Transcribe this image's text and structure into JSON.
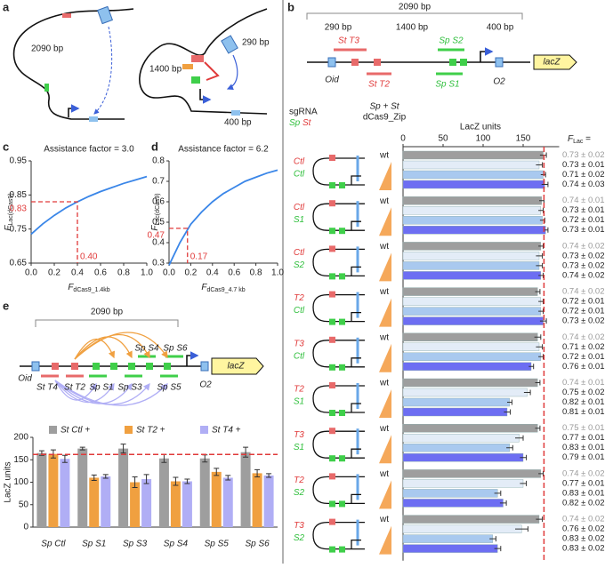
{
  "figure": {
    "panel_labels": {
      "a": "a",
      "b": "b",
      "c": "c",
      "d": "d",
      "e": "e"
    },
    "panel_a": {
      "left_length": "2090 bp",
      "right_long": "1400 bp",
      "right_top": "290 bp",
      "right_bottom": "400 bp"
    },
    "panel_b_map": {
      "span": "2090 bp",
      "seg1": "290 bp",
      "seg2": "1400 bp",
      "seg3": "400 bp",
      "st_t3": "St T3",
      "sp_s2": "Sp S2",
      "st_t2": "St T2",
      "sp_s1": "Sp S1",
      "oid": "Oid",
      "o2": "O2",
      "lacz": "lacZ"
    },
    "panel_b_headers": {
      "sgrna": "sgRNA",
      "sp": "Sp",
      "st": "St",
      "combo": "Sp + St",
      "zip": "dCas9_Zip",
      "flac": "F",
      "flac_sub": "Lac",
      "flac_eq": " ="
    },
    "panel_e_map": {
      "span": "2090 bp",
      "sp_s4": "Sp S4",
      "sp_s6": "Sp S6",
      "oid": "Oid",
      "st_t4": "St T4",
      "st_t2": "St T2",
      "sp_s1": "Sp S1",
      "sp_s3": "Sp S3",
      "sp_s5": "Sp S5",
      "o2": "O2",
      "lacz": "lacZ"
    }
  },
  "chart_data": [
    {
      "type": "line",
      "title": "Assistance factor = 3.0",
      "xlabel": {
        "main": "F",
        "sub": "dCas9_1.4kb"
      },
      "ylabel": {
        "main": "F",
        "sub": "Lac(dCas9)"
      },
      "x": [
        0,
        0.1,
        0.2,
        0.3,
        0.4,
        0.5,
        0.6,
        0.7,
        0.8,
        0.9,
        1
      ],
      "series": [
        {
          "color": "#3a86e8",
          "values": [
            0.735,
            0.765,
            0.79,
            0.812,
            0.83,
            0.846,
            0.86,
            0.872,
            0.884,
            0.894,
            0.904
          ]
        }
      ],
      "xlim": [
        0,
        1
      ],
      "ylim": [
        0.65,
        0.95
      ],
      "xticks": [
        {
          "value": 0,
          "label": "0.0"
        },
        0.2,
        0.4,
        0.6,
        0.8,
        {
          "value": 1,
          "label": "1.0"
        }
      ],
      "yticks": [
        0.65,
        0.75,
        0.85,
        0.95
      ],
      "highlight": {
        "x": {
          "value": 0.4,
          "label": "0.40"
        },
        "y": {
          "value": 0.83,
          "label": "0.83"
        },
        "color": "#e03a3a"
      }
    },
    {
      "type": "line",
      "title": "Assistance factor = 6.2",
      "xlabel": {
        "main": "F",
        "sub": "dCas9_4.7 kb"
      },
      "ylabel": {
        "main": "F",
        "sub": "Lac(dCas9)"
      },
      "x": [
        0,
        0.1,
        0.2,
        0.3,
        0.4,
        0.5,
        0.6,
        0.7,
        0.8,
        0.9,
        1
      ],
      "series": [
        {
          "color": "#3a86e8",
          "values": [
            0.29,
            0.4,
            0.49,
            0.55,
            0.6,
            0.64,
            0.67,
            0.7,
            0.72,
            0.74,
            0.755
          ]
        }
      ],
      "xlim": [
        0,
        1
      ],
      "ylim": [
        0.3,
        0.8
      ],
      "xticks": [
        {
          "value": 0,
          "label": "0.0"
        },
        0.2,
        0.4,
        0.6,
        0.8,
        {
          "value": 1,
          "label": "1.0"
        }
      ],
      "yticks": [
        0.3,
        0.4,
        0.5,
        0.6,
        0.7,
        0.8
      ],
      "highlight": {
        "x": {
          "value": 0.17,
          "label": "0.17"
        },
        "y": {
          "value": 0.47,
          "label": "0.47"
        },
        "color": "#e03a3a"
      }
    },
    {
      "type": "grouped-bar",
      "ylabel": "LacZ units",
      "categories": [
        "Sp Ctl",
        "Sp S1",
        "Sp S3",
        "Sp S4",
        "Sp S5",
        "Sp S6"
      ],
      "series": [
        {
          "name": "St Ctl +",
          "color": "#9e9e9e",
          "values": [
            165,
            175,
            175,
            153,
            153,
            167
          ],
          "errors": [
            5,
            3,
            10,
            9,
            8,
            11
          ]
        },
        {
          "name": "St T2 +",
          "color": "#f0a040",
          "values": [
            163,
            110,
            100,
            102,
            123,
            120
          ],
          "errors": [
            9,
            6,
            12,
            9,
            8,
            8
          ]
        },
        {
          "name": "St T4 +",
          "color": "#b0aef5",
          "values": [
            152,
            113,
            107,
            102,
            110,
            115
          ],
          "errors": [
            8,
            4,
            10,
            5,
            5,
            4
          ]
        }
      ],
      "ylim": [
        0,
        200
      ],
      "yticks": [
        0,
        50,
        100,
        150,
        200
      ],
      "reference_line": 162,
      "reference_color": "#e03a3a"
    },
    {
      "type": "hbar-groups",
      "xlabel": "LacZ units",
      "wt_label": "wt",
      "xlim": [
        0,
        195
      ],
      "xticks": [
        0,
        50,
        100,
        150
      ],
      "reference_line": 176,
      "reference_color": "#e03a3a",
      "groups": [
        {
          "st": "Ctl",
          "sp": "Ctl"
        },
        {
          "st": "Ctl",
          "sp": "S1"
        },
        {
          "st": "Ctl",
          "sp": "S2"
        },
        {
          "st": "T2",
          "sp": "Ctl"
        },
        {
          "st": "T3",
          "sp": "Ctl"
        },
        {
          "st": "T2",
          "sp": "S1"
        },
        {
          "st": "T3",
          "sp": "S1"
        },
        {
          "st": "T2",
          "sp": "S2"
        },
        {
          "st": "T3",
          "sp": "S2"
        }
      ],
      "series": [
        {
          "color": "#9e9e9e",
          "label_color": "#9a9a9a",
          "values": [
            175,
            173,
            172,
            168,
            168,
            168,
            168,
            172,
            170
          ],
          "errors": [
            4,
            3,
            3,
            3,
            4,
            3,
            3,
            3,
            4
          ]
        },
        {
          "color": "#e3ecf7",
          "label_color": "#222222",
          "values": [
            170,
            172,
            170,
            172,
            170,
            155,
            145,
            150,
            148
          ],
          "errors": [
            4,
            3,
            4,
            3,
            4,
            4,
            5,
            4,
            8
          ]
        },
        {
          "color": "#a9c9ef",
          "label_color": "#222222",
          "values": [
            175,
            174,
            170,
            172,
            172,
            133,
            133,
            118,
            112
          ],
          "errors": [
            3,
            3,
            4,
            3,
            3,
            3,
            4,
            4,
            4
          ]
        },
        {
          "color": "#6d6ef2",
          "label_color": "#222222",
          "values": [
            177,
            178,
            172,
            175,
            160,
            130,
            150,
            125,
            118
          ],
          "errors": [
            4,
            3,
            3,
            4,
            3,
            4,
            4,
            4,
            4
          ]
        }
      ],
      "flac_labels": [
        [
          "0.73 ± 0.02",
          "0.73 ± 0.01",
          "0.71 ± 0.02",
          "0.74 ± 0.03"
        ],
        [
          "0.74 ± 0.01",
          "0.73 ± 0.01",
          "0.72 ± 0.01",
          "0.73 ± 0.01"
        ],
        [
          "0.74 ± 0.02",
          "0.73 ± 0.02",
          "0.73 ± 0.02",
          "0.74 ± 0.02"
        ],
        [
          "0.74 ± 0.02",
          "0.72 ± 0.01",
          "0.72 ± 0.01",
          "0.73 ± 0.02"
        ],
        [
          "0.74 ± 0.02",
          "0.71 ± 0.02",
          "0.72 ± 0.01",
          "0.76 ± 0.01"
        ],
        [
          "0.74 ± 0.01",
          "0.75 ± 0.02",
          "0.82 ± 0.01",
          "0.81 ± 0.01"
        ],
        [
          "0.75 ± 0.01",
          "0.77 ± 0.01",
          "0.83 ± 0.01",
          "0.79 ± 0.01"
        ],
        [
          "0.74 ± 0.02",
          "0.77 ± 0.01",
          "0.83 ± 0.01",
          "0.82 ± 0.02"
        ],
        [
          "0.74 ± 0.02",
          "0.76 ± 0.02",
          "0.83 ± 0.02",
          "0.83 ± 0.02"
        ]
      ]
    }
  ]
}
